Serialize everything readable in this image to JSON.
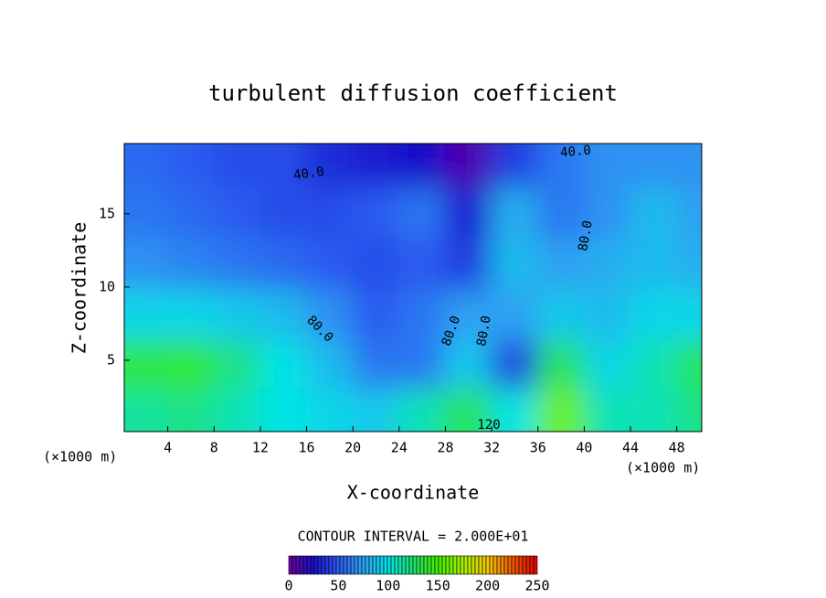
{
  "chart_data": {
    "type": "heatmap",
    "title": "turbulent diffusion coefficient",
    "x_label": "X-coordinate",
    "y_label": "Z-coordinate",
    "x_unit_label": "(×1000 m)",
    "colorbar_title": "CONTOUR INTERVAL = 2.000E+01",
    "xlim": [
      0,
      50
    ],
    "xticks": [
      4,
      8,
      12,
      16,
      20,
      24,
      28,
      32,
      36,
      40,
      44,
      48
    ],
    "ylim": [
      0,
      19.8
    ],
    "yticks": [
      5,
      10,
      15
    ],
    "zlim": [
      0,
      250
    ],
    "zticks": [
      0,
      50,
      100,
      150,
      200,
      250
    ],
    "colormap": [
      "#7000a0",
      "#1810c8",
      "#2a5cf0",
      "#2ea0f2",
      "#00e4e4",
      "#20e070",
      "#40f000",
      "#a8f000",
      "#f0c800",
      "#f05a00",
      "#e00000"
    ],
    "x": [
      2,
      6,
      10,
      14,
      18,
      22,
      26,
      30,
      34,
      38,
      42,
      46,
      50
    ],
    "y": [
      18.5,
      15,
      11.5,
      8,
      4.5,
      1.5
    ],
    "z": [
      [
        55,
        50,
        45,
        45,
        35,
        30,
        25,
        10,
        40,
        60,
        70,
        70,
        70
      ],
      [
        60,
        55,
        50,
        45,
        45,
        50,
        60,
        30,
        80,
        60,
        70,
        85,
        75
      ],
      [
        70,
        65,
        60,
        55,
        50,
        45,
        50,
        40,
        85,
        75,
        80,
        85,
        80
      ],
      [
        95,
        95,
        90,
        85,
        70,
        50,
        60,
        75,
        75,
        90,
        85,
        95,
        95
      ],
      [
        135,
        140,
        120,
        100,
        85,
        60,
        60,
        90,
        40,
        130,
        95,
        110,
        130
      ],
      [
        115,
        120,
        110,
        100,
        95,
        90,
        110,
        130,
        100,
        160,
        110,
        110,
        120
      ]
    ],
    "annotations": [
      "40.0",
      "40.0",
      "80.0",
      "80.0",
      "80.0",
      "80.0",
      "120"
    ]
  }
}
